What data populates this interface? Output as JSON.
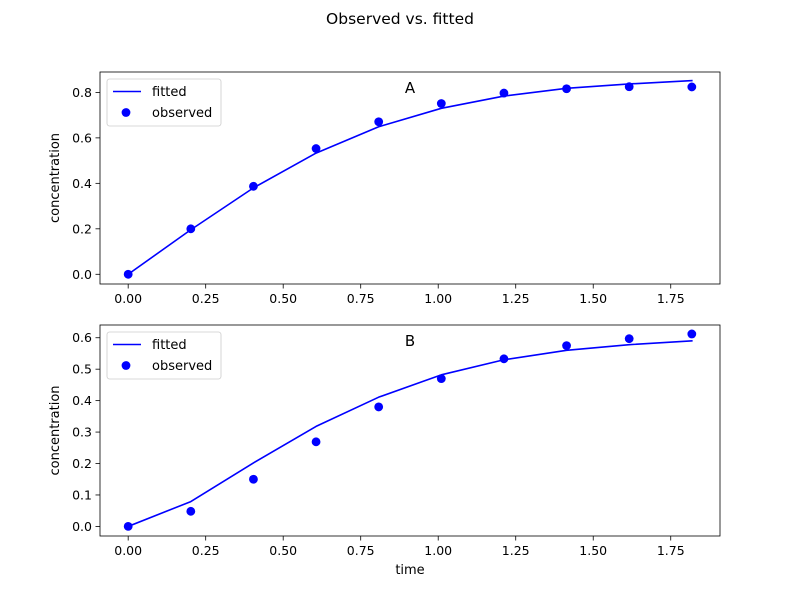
{
  "figure": {
    "title": "Observed vs. fitted",
    "colors": {
      "line": "#0000ff",
      "points": "#0000ff",
      "axes": "#000000",
      "legend_border": "#cccccc"
    }
  },
  "chart_data": [
    {
      "type": "line",
      "panel_label": "A",
      "xlabel": "",
      "ylabel": "concentration",
      "xlim": [
        -0.0909,
        1.9089
      ],
      "ylim": [
        -0.0427,
        0.8897
      ],
      "xticks": [
        0.0,
        0.25,
        0.5,
        0.75,
        1.0,
        1.25,
        1.5,
        1.75
      ],
      "xtick_labels": [
        "0.00",
        "0.25",
        "0.50",
        "0.75",
        "1.00",
        "1.25",
        "1.50",
        "1.75"
      ],
      "yticks": [
        0.0,
        0.2,
        0.4,
        0.6,
        0.8
      ],
      "ytick_labels": [
        "0.0",
        "0.2",
        "0.4",
        "0.6",
        "0.8"
      ],
      "legend": {
        "placement": "upper left",
        "entries": [
          "fitted",
          "observed"
        ]
      },
      "x": [
        0.0,
        0.202,
        0.404,
        0.606,
        0.808,
        1.01,
        1.212,
        1.414,
        1.616,
        1.818
      ],
      "series": [
        {
          "name": "fitted",
          "kind": "line",
          "values": [
            0.0,
            0.196,
            0.38,
            0.533,
            0.649,
            0.73,
            0.784,
            0.818,
            0.837,
            0.852
          ]
        },
        {
          "name": "observed",
          "kind": "scatter",
          "values": [
            0.0,
            0.2,
            0.387,
            0.553,
            0.671,
            0.751,
            0.797,
            0.816,
            0.825,
            0.824
          ]
        }
      ]
    },
    {
      "type": "line",
      "panel_label": "B",
      "xlabel": "time",
      "ylabel": "concentration",
      "xlim": [
        -0.0909,
        1.9089
      ],
      "ylim": [
        -0.0305,
        0.6405
      ],
      "xticks": [
        0.0,
        0.25,
        0.5,
        0.75,
        1.0,
        1.25,
        1.5,
        1.75
      ],
      "xtick_labels": [
        "0.00",
        "0.25",
        "0.50",
        "0.75",
        "1.00",
        "1.25",
        "1.50",
        "1.75"
      ],
      "yticks": [
        0.0,
        0.1,
        0.2,
        0.3,
        0.4,
        0.5,
        0.6
      ],
      "ytick_labels": [
        "0.0",
        "0.1",
        "0.2",
        "0.3",
        "0.4",
        "0.5",
        "0.6"
      ],
      "legend": {
        "placement": "upper left",
        "entries": [
          "fitted",
          "observed"
        ]
      },
      "x": [
        0.0,
        0.202,
        0.404,
        0.606,
        0.808,
        1.01,
        1.212,
        1.414,
        1.616,
        1.818
      ],
      "series": [
        {
          "name": "fitted",
          "kind": "line",
          "values": [
            0.0,
            0.079,
            0.202,
            0.318,
            0.411,
            0.482,
            0.53,
            0.56,
            0.578,
            0.59
          ]
        },
        {
          "name": "observed",
          "kind": "scatter",
          "values": [
            0.0,
            0.048,
            0.15,
            0.269,
            0.38,
            0.47,
            0.533,
            0.575,
            0.597,
            0.612
          ]
        }
      ]
    }
  ]
}
